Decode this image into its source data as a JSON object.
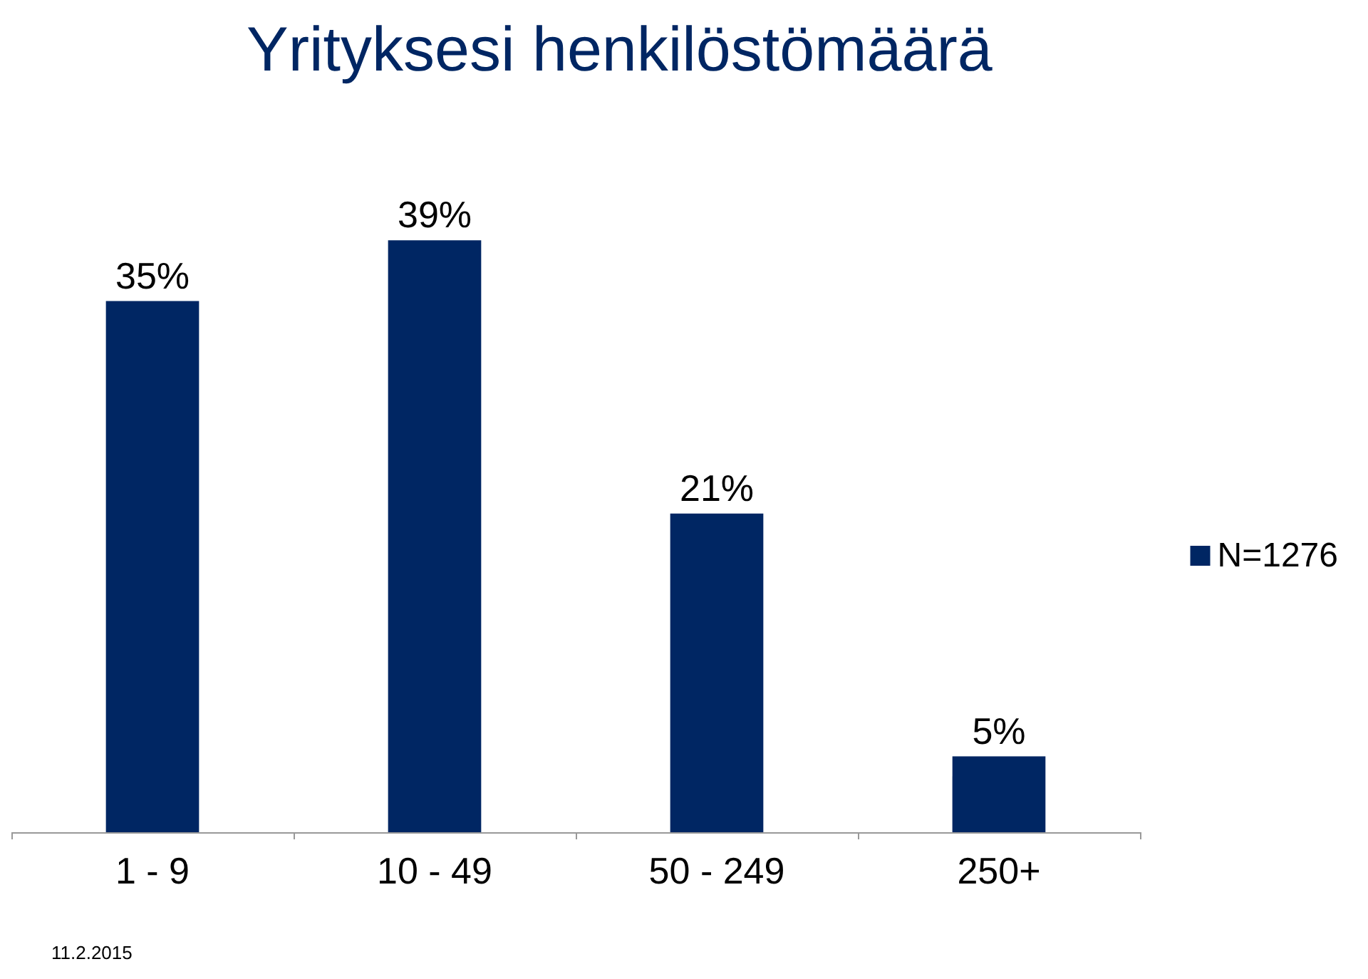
{
  "chart_data": {
    "type": "bar",
    "title": "Yrityksesi henkilöstömäärä",
    "categories": [
      "1 - 9",
      "10 - 49",
      "50 - 249",
      "250+"
    ],
    "series": [
      {
        "name": "N=1276",
        "color": "#002663",
        "values": [
          35,
          39,
          21,
          5
        ],
        "value_labels": [
          "35%",
          "39%",
          "21%",
          "5%"
        ]
      }
    ],
    "legend": "right",
    "grid": false,
    "annotations": [
      "11.2.2015"
    ]
  }
}
